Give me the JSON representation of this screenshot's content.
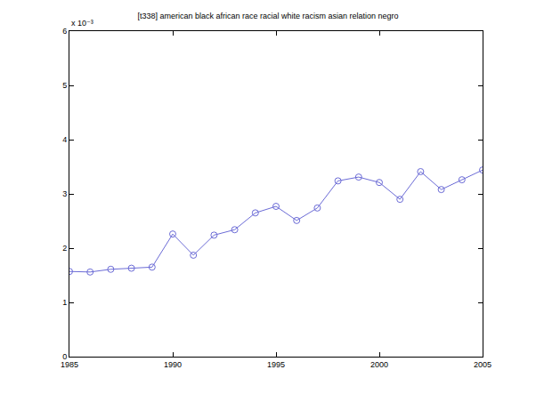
{
  "chart_data": {
    "type": "line",
    "title": "[t338] american black african race racial white racism asian relation negro",
    "annotation": "x 10⁻³",
    "x": [
      1985,
      1986,
      1987,
      1988,
      1989,
      1990,
      1991,
      1992,
      1993,
      1994,
      1995,
      1996,
      1997,
      1998,
      1999,
      2000,
      2001,
      2002,
      2003,
      2004,
      2005
    ],
    "values": [
      1.57,
      1.56,
      1.61,
      1.63,
      1.65,
      2.26,
      1.87,
      2.24,
      2.34,
      2.65,
      2.77,
      2.51,
      2.74,
      3.24,
      3.31,
      3.21,
      2.9,
      3.41,
      3.08,
      3.26,
      3.44
    ],
    "color": "#6b6bd6",
    "marker": "circle-open",
    "line_style": "solid",
    "xlim": [
      1985,
      2005
    ],
    "xticks": [
      1985,
      1990,
      1995,
      2000,
      2005
    ],
    "ylim": [
      0,
      6
    ],
    "yticks": [
      0,
      1,
      2,
      3,
      4,
      5,
      6
    ],
    "grid": false
  }
}
